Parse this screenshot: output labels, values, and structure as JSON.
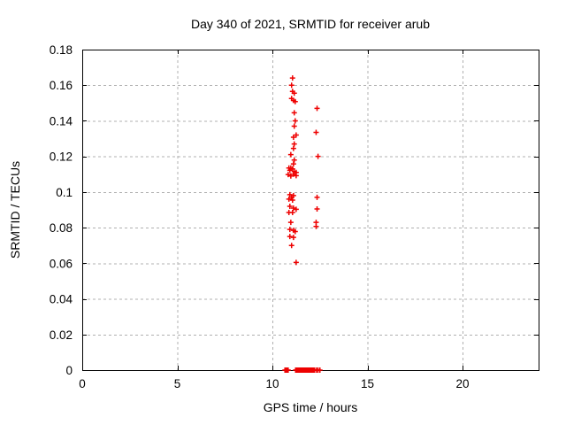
{
  "chart_data": {
    "type": "scatter",
    "title": "Day 340 of 2021, SRMTID for receiver arub",
    "xlabel": "GPS time / hours",
    "ylabel": "SRMTID / TECUs",
    "xlim": [
      0,
      24
    ],
    "ylim": [
      0,
      0.18
    ],
    "x_ticks": {
      "values": [
        0,
        5,
        10,
        15,
        20
      ],
      "labels": [
        "0",
        "5",
        "10",
        "15",
        "20"
      ]
    },
    "y_ticks": {
      "values": [
        0,
        0.02,
        0.04,
        0.06,
        0.08,
        0.1,
        0.12,
        0.14,
        0.16,
        0.18
      ],
      "labels": [
        "0",
        "0.02",
        "0.04",
        "0.06",
        "0.08",
        "0.1",
        "0.12",
        "0.14",
        "0.16",
        "0.18"
      ]
    },
    "grid": "dashed-major",
    "legend": "none",
    "marker": {
      "shape": "plus",
      "size": 7,
      "color": "#ee0000"
    },
    "series": [
      {
        "name": "SRMTID",
        "points": [
          [
            11.06,
            0.164
          ],
          [
            11.01,
            0.16
          ],
          [
            11.06,
            0.1565
          ],
          [
            11.15,
            0.1555
          ],
          [
            11.01,
            0.1525
          ],
          [
            11.11,
            0.1515
          ],
          [
            11.2,
            0.1508
          ],
          [
            11.15,
            0.1445
          ],
          [
            11.2,
            0.14
          ],
          [
            11.15,
            0.137
          ],
          [
            11.25,
            0.132
          ],
          [
            11.11,
            0.1308
          ],
          [
            11.15,
            0.127
          ],
          [
            11.11,
            0.1245
          ],
          [
            10.97,
            0.121
          ],
          [
            11.15,
            0.118
          ],
          [
            11.11,
            0.1158
          ],
          [
            10.87,
            0.1135
          ],
          [
            10.97,
            0.1135
          ],
          [
            11.06,
            0.113
          ],
          [
            10.92,
            0.1122
          ],
          [
            11.15,
            0.1115
          ],
          [
            11.25,
            0.111
          ],
          [
            11.11,
            0.11
          ],
          [
            10.83,
            0.1098
          ],
          [
            10.97,
            0.109
          ],
          [
            11.25,
            0.1092
          ],
          [
            10.92,
            0.0985
          ],
          [
            11.11,
            0.098
          ],
          [
            11.01,
            0.097
          ],
          [
            10.87,
            0.096
          ],
          [
            11.06,
            0.0955
          ],
          [
            10.92,
            0.092
          ],
          [
            11.11,
            0.091
          ],
          [
            11.25,
            0.0903
          ],
          [
            10.87,
            0.0885
          ],
          [
            11.06,
            0.0885
          ],
          [
            10.97,
            0.083
          ],
          [
            10.92,
            0.079
          ],
          [
            11.11,
            0.0785
          ],
          [
            11.2,
            0.0778
          ],
          [
            10.92,
            0.075
          ],
          [
            11.11,
            0.0745
          ],
          [
            11.01,
            0.07
          ],
          [
            11.25,
            0.0605
          ],
          [
            12.35,
            0.147
          ],
          [
            12.3,
            0.1335
          ],
          [
            12.4,
            0.12
          ],
          [
            12.35,
            0.097
          ],
          [
            12.35,
            0.0905
          ],
          [
            12.3,
            0.083
          ],
          [
            12.3,
            0.0807
          ],
          [
            10.66,
            0
          ],
          [
            10.72,
            0
          ],
          [
            10.78,
            0
          ],
          [
            10.83,
            0
          ],
          [
            11.22,
            0
          ],
          [
            11.27,
            0
          ],
          [
            11.32,
            0
          ],
          [
            11.37,
            0
          ],
          [
            11.42,
            0
          ],
          [
            11.47,
            0
          ],
          [
            11.52,
            0
          ],
          [
            11.57,
            0
          ],
          [
            11.62,
            0
          ],
          [
            11.67,
            0
          ],
          [
            11.72,
            0
          ],
          [
            11.77,
            0
          ],
          [
            11.82,
            0
          ],
          [
            11.87,
            0
          ],
          [
            11.92,
            0
          ],
          [
            11.97,
            0
          ],
          [
            12.02,
            0
          ],
          [
            12.07,
            0
          ],
          [
            12.12,
            0
          ],
          [
            12.17,
            0
          ],
          [
            12.22,
            0
          ],
          [
            12.32,
            0
          ],
          [
            12.4,
            0
          ],
          [
            12.5,
            0
          ]
        ]
      }
    ]
  },
  "colors": {
    "background": "#ffffff",
    "axis": "#000000",
    "grid": "#b0b0b0",
    "marker": "#ee0000"
  }
}
